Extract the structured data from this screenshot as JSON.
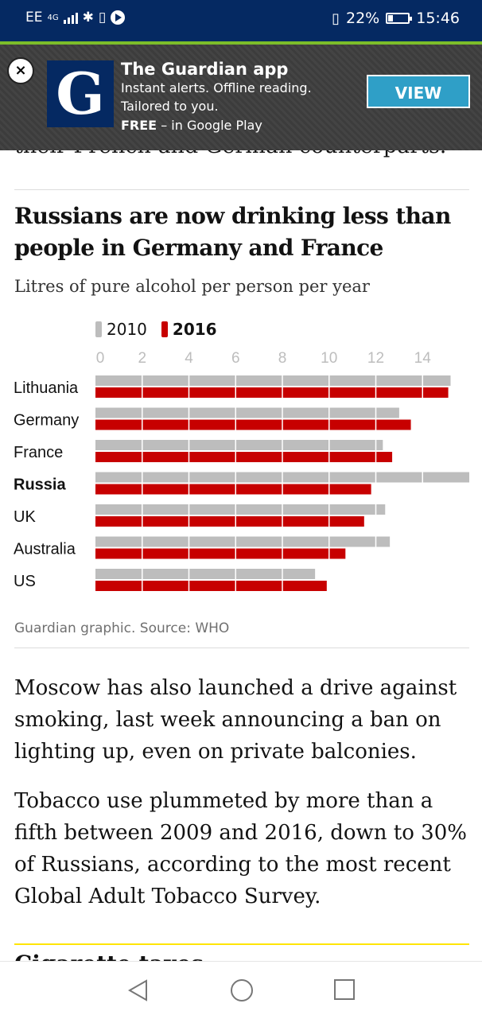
{
  "status_bar": {
    "carrier": "EE",
    "network": "4G",
    "battery": "22%",
    "battery_level": 0.22,
    "time": "15:46"
  },
  "app_banner": {
    "close_label": "×",
    "logo_letter": "G",
    "title": "The Guardian app",
    "line1": "Instant alerts. Offline reading.",
    "line2": "Tailored to you.",
    "free_label": "FREE",
    "line3_rest": " – in Google Play",
    "view_label": "VIEW"
  },
  "article": {
    "cut_text": "their French and German counterparts.",
    "paragraph1": "Moscow has also launched a drive against smoking, last week announcing a ban on lighting up, even on private balconies.",
    "paragraph2": "Tobacco use plummeted by more than a fifth between 2009 and 2016, down to 30% of Russians, according to the most recent Global Adult Tobacco Survey.",
    "next_heading_peek": "Cigarette taxes"
  },
  "colors": {
    "guardian_blue": "#052962",
    "bar_2010": "#bdbdbd",
    "bar_2016": "#c70000",
    "view_button": "#2f9fc7",
    "status_accent": "#7cbd2a"
  },
  "chart_data": {
    "type": "bar",
    "orientation": "horizontal",
    "title": "Russians are now drinking less than people in Germany and France",
    "subtitle": "Litres of pure alcohol per person per year",
    "categories": [
      "Lithuania",
      "Germany",
      "France",
      "Russia",
      "UK",
      "Australia",
      "US"
    ],
    "highlight_category": "Russia",
    "series": [
      {
        "name": "2010",
        "color": "#bdbdbd",
        "values": [
          15.2,
          13.0,
          12.3,
          16.0,
          12.4,
          12.6,
          9.4
        ]
      },
      {
        "name": "2016",
        "color": "#c70000",
        "values": [
          15.1,
          13.5,
          12.7,
          11.8,
          11.5,
          10.7,
          9.9
        ]
      }
    ],
    "ticks": [
      "0",
      "2",
      "4",
      "6",
      "8",
      "10",
      "12",
      "14"
    ],
    "xlim": [
      0,
      16
    ],
    "grid": true,
    "legend_position": "top",
    "source": "Guardian graphic. Source: WHO"
  }
}
